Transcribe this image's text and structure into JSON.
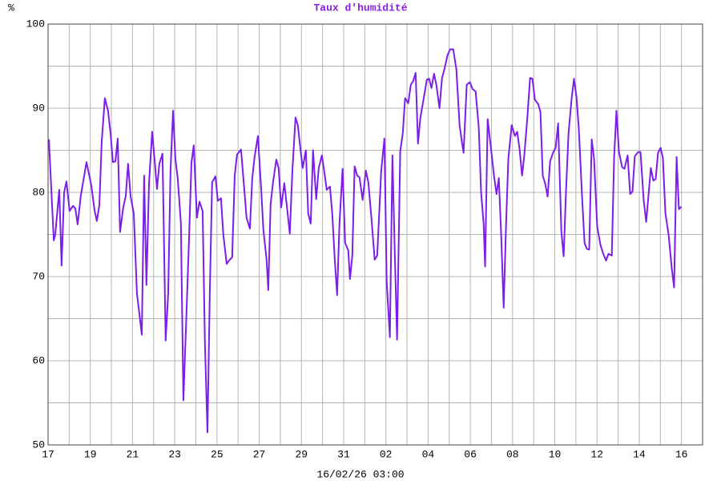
{
  "chart_data": {
    "type": "line",
    "title": "Taux d'humidité",
    "ylabel": "%",
    "xlabel": "16/02/26 03:00",
    "xlim": [
      0,
      31
    ],
    "ylim": [
      50,
      100
    ],
    "grid": true,
    "yticks": [
      50,
      60,
      70,
      80,
      90,
      100
    ],
    "yminor_ticks": [
      55,
      65,
      75,
      85,
      95
    ],
    "xticks": [
      {
        "value": 0,
        "label": "17"
      },
      {
        "value": 2,
        "label": "19"
      },
      {
        "value": 4,
        "label": "21"
      },
      {
        "value": 6,
        "label": "23"
      },
      {
        "value": 8,
        "label": "25"
      },
      {
        "value": 10,
        "label": "27"
      },
      {
        "value": 12,
        "label": "29"
      },
      {
        "value": 14,
        "label": "31"
      },
      {
        "value": 16,
        "label": "02"
      },
      {
        "value": 18,
        "label": "04"
      },
      {
        "value": 20,
        "label": "06"
      },
      {
        "value": 22,
        "label": "08"
      },
      {
        "value": 24,
        "label": "10"
      },
      {
        "value": 26,
        "label": "12"
      },
      {
        "value": 28,
        "label": "14"
      },
      {
        "value": 30,
        "label": "16"
      }
    ],
    "xminor_ticks": [
      1,
      3,
      5,
      7,
      9,
      11,
      13,
      15,
      17,
      19,
      21,
      23,
      25,
      27,
      29
    ],
    "x": [
      0.04,
      0.27,
      0.34,
      0.53,
      0.64,
      0.76,
      0.87,
      1.02,
      1.18,
      1.29,
      1.4,
      1.55,
      1.82,
      2.05,
      2.2,
      2.31,
      2.43,
      2.54,
      2.69,
      2.84,
      2.96,
      3.07,
      3.19,
      3.3,
      3.41,
      3.56,
      3.68,
      3.79,
      3.91,
      4.06,
      4.21,
      4.44,
      4.55,
      4.66,
      4.78,
      4.93,
      5.04,
      5.16,
      5.27,
      5.42,
      5.57,
      5.69,
      5.8,
      5.92,
      6.03,
      6.14,
      6.29,
      6.41,
      6.56,
      6.67,
      6.79,
      6.9,
      7.05,
      7.17,
      7.32,
      7.43,
      7.55,
      7.66,
      7.77,
      7.93,
      8.04,
      8.19,
      8.3,
      8.46,
      8.57,
      8.72,
      8.84,
      8.95,
      9.14,
      9.25,
      9.4,
      9.56,
      9.67,
      9.78,
      9.94,
      10.09,
      10.2,
      10.35,
      10.43,
      10.54,
      10.66,
      10.81,
      10.92,
      11.04,
      11.19,
      11.3,
      11.45,
      11.57,
      11.72,
      11.83,
      11.95,
      12.06,
      12.21,
      12.32,
      12.44,
      12.55,
      12.7,
      12.82,
      12.97,
      13.08,
      13.2,
      13.35,
      13.46,
      13.58,
      13.69,
      13.8,
      13.95,
      14.07,
      14.22,
      14.3,
      14.41,
      14.52,
      14.64,
      14.75,
      14.9,
      15.05,
      15.17,
      15.32,
      15.47,
      15.59,
      15.78,
      15.93,
      16.04,
      16.19,
      16.31,
      16.42,
      16.53,
      16.68,
      16.8,
      16.91,
      17.06,
      17.18,
      17.29,
      17.41,
      17.52,
      17.63,
      17.78,
      17.94,
      18.05,
      18.16,
      18.28,
      18.39,
      18.54,
      18.66,
      18.77,
      18.92,
      19.04,
      19.19,
      19.34,
      19.49,
      19.6,
      19.68,
      19.83,
      19.98,
      20.1,
      20.25,
      20.4,
      20.51,
      20.63,
      20.7,
      20.82,
      20.97,
      21.12,
      21.24,
      21.35,
      21.46,
      21.58,
      21.69,
      21.8,
      21.96,
      22.11,
      22.22,
      22.33,
      22.45,
      22.56,
      22.71,
      22.83,
      22.94,
      23.06,
      23.21,
      23.32,
      23.43,
      23.55,
      23.66,
      23.78,
      23.93,
      24.04,
      24.16,
      24.31,
      24.42,
      24.53,
      24.65,
      24.8,
      24.91,
      25.03,
      25.14,
      25.29,
      25.41,
      25.52,
      25.63,
      25.75,
      25.86,
      26.01,
      26.16,
      26.28,
      26.43,
      26.54,
      26.7,
      26.81,
      26.92,
      27.04,
      27.19,
      27.3,
      27.45,
      27.57,
      27.68,
      27.79,
      27.95,
      28.06,
      28.21,
      28.33,
      28.44,
      28.55,
      28.67,
      28.78,
      28.89,
      29.01,
      29.12,
      29.24,
      29.39,
      29.54,
      29.65,
      29.77,
      29.88,
      29.99
    ],
    "series": [
      {
        "color": "#7b1fe8",
        "values": [
          86.3,
          74.3,
          75,
          80.3,
          71.3,
          80,
          81.3,
          77.8,
          78.4,
          78.1,
          76.2,
          79.6,
          83.6,
          80.8,
          77.9,
          76.6,
          78.5,
          86,
          91.2,
          89.7,
          87,
          83.6,
          83.7,
          86.4,
          75.3,
          78.2,
          79.6,
          83.4,
          79.5,
          77.5,
          68,
          63.1,
          82,
          69,
          81,
          87.2,
          84,
          80.4,
          83.4,
          84.6,
          62.4,
          68,
          82.6,
          89.7,
          84,
          81.7,
          76.4,
          55.3,
          66,
          74,
          83.5,
          85.6,
          77,
          78.9,
          77.8,
          62,
          51.5,
          68,
          81.2,
          81.9,
          79,
          79.3,
          75,
          71.5,
          71.9,
          72.3,
          82,
          84.5,
          85.1,
          81.7,
          77,
          75.7,
          81.6,
          84.2,
          86.7,
          80.5,
          75.5,
          72,
          68.4,
          78.6,
          81.3,
          83.9,
          82.9,
          78.2,
          81.1,
          78.6,
          75.1,
          82.5,
          88.9,
          88,
          85.2,
          82.9,
          85,
          77.5,
          76.3,
          85,
          79.2,
          82.9,
          84.4,
          82.5,
          80.3,
          80.7,
          77.5,
          72,
          67.8,
          76.2,
          82.8,
          74,
          73.1,
          69.7,
          72.5,
          83.1,
          82,
          81.8,
          79.1,
          82.6,
          81.2,
          76.8,
          72,
          72.5,
          82.6,
          86.4,
          69.3,
          62.8,
          84.4,
          73,
          62.5,
          84.9,
          87,
          91.2,
          90.6,
          92.8,
          93.2,
          94.2,
          85.8,
          88.8,
          91,
          93.4,
          93.5,
          92.4,
          94.1,
          92.8,
          90,
          93.6,
          94.6,
          96.3,
          97,
          97,
          94.6,
          88,
          86,
          84.7,
          92.8,
          93.1,
          92.3,
          92,
          87.7,
          80,
          76.3,
          71.2,
          88.7,
          85.4,
          82,
          79.8,
          81.7,
          75,
          66.3,
          76,
          84,
          88,
          86.7,
          87.2,
          85.2,
          82,
          84.5,
          89.2,
          93.6,
          93.5,
          91,
          90.5,
          89.6,
          82,
          81,
          79.5,
          83.7,
          84.8,
          85.3,
          88.2,
          75.4,
          72.4,
          80,
          87,
          91.2,
          93.5,
          91.3,
          87.5,
          79.6,
          74,
          73.3,
          73.2,
          86.3,
          84,
          75.9,
          73.8,
          72.8,
          71.9,
          72.7,
          72.5,
          84.1,
          89.7,
          84.8,
          83,
          82.8,
          84.4,
          79.8,
          80.1,
          84.3,
          84.8,
          84.8,
          79.1,
          76.5,
          79.7,
          82.9,
          81.4,
          81.6,
          84.7,
          85.3,
          84.1,
          77.5,
          75,
          71,
          68.7,
          84.2,
          78,
          78.3
        ]
      }
    ]
  }
}
